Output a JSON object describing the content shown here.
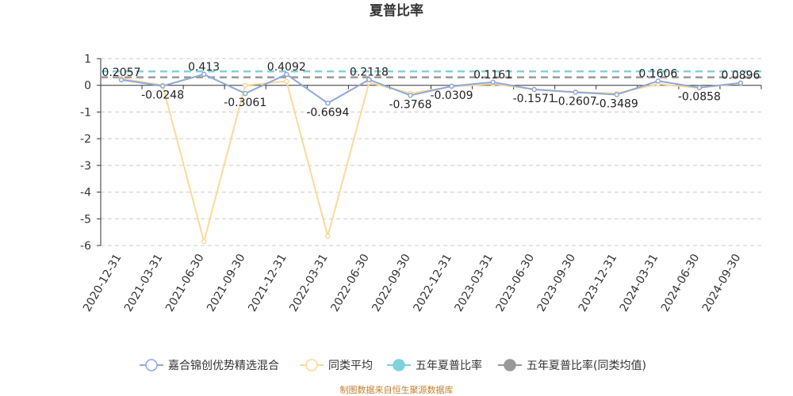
{
  "chart_data": {
    "type": "line",
    "title": "夏普比率",
    "categories": [
      "2020-12-31",
      "2021-03-31",
      "2021-06-30",
      "2021-09-30",
      "2021-12-31",
      "2022-03-31",
      "2022-06-30",
      "2022-09-30",
      "2022-12-31",
      "2023-03-31",
      "2023-06-30",
      "2023-09-30",
      "2023-12-31",
      "2024-03-31",
      "2024-06-30",
      "2024-09-30"
    ],
    "ylim": [
      -6,
      1
    ],
    "yticks": [
      "1",
      "0",
      "-1",
      "-2",
      "-3",
      "-4",
      "-5",
      "-6"
    ],
    "grid": true,
    "legend_position": "bottom",
    "series": [
      {
        "name": "嘉合锦创优势精选混合",
        "color": "#8fa8d8",
        "values": [
          0.2057,
          -0.0248,
          0.413,
          -0.3061,
          0.4092,
          -0.6694,
          0.2118,
          -0.3768,
          -0.0309,
          0.1161,
          -0.1571,
          -0.2607,
          -0.3489,
          0.1606,
          -0.0858,
          0.0896
        ],
        "labels": [
          "0.2057",
          "-0.0248",
          "0.413",
          "-0.3061",
          "0.4092",
          "-0.6694",
          "0.2118",
          "-0.3768",
          "-0.0309",
          "0.1161",
          "-0.1571",
          "-0.2607",
          "-0.3489",
          "0.1606",
          "-0.0858",
          "0.0896"
        ]
      },
      {
        "name": "同类平均",
        "color": "#fad99a",
        "values": [
          0.25,
          0.0,
          -5.85,
          0.0,
          0.15,
          -5.65,
          0.1,
          -0.3,
          -0.05,
          0.05,
          -0.15,
          -0.25,
          -0.3,
          0.05,
          -0.1,
          0.08
        ]
      },
      {
        "name": "五年夏普比率",
        "color": "#7fd1dc",
        "constant": 0.52
      },
      {
        "name": "五年夏普比率(同类均值)",
        "color": "#999999",
        "constant": 0.3
      }
    ]
  },
  "source": "制图数据来自恒生聚源数据库"
}
